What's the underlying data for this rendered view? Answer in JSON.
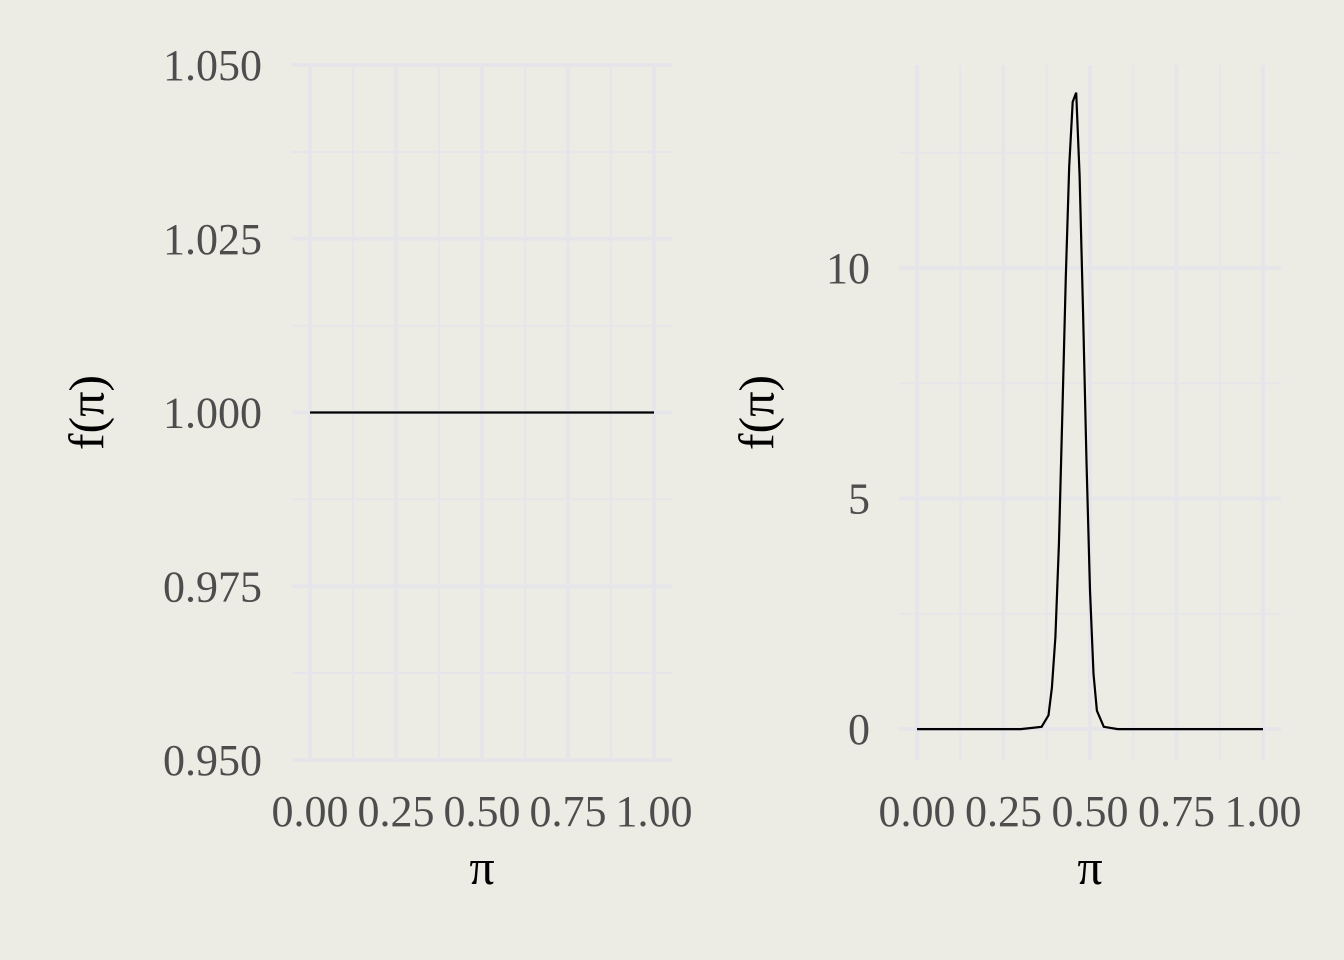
{
  "chart_data": [
    {
      "type": "line",
      "title": "",
      "xlabel": "π",
      "ylabel": "f(π)",
      "xlim": [
        0,
        1
      ],
      "ylim": [
        0.95,
        1.05
      ],
      "x_ticks": [
        0,
        0.25,
        0.5,
        0.75,
        1
      ],
      "x_tick_labels": [
        "0.00",
        "0.25",
        "0.50",
        "0.75",
        "1.00"
      ],
      "y_ticks": [
        0.95,
        0.975,
        1.0,
        1.025,
        1.05
      ],
      "y_tick_labels": [
        "0.950",
        "0.975",
        "1.000",
        "1.025",
        "1.050"
      ],
      "grid": true,
      "series": [
        {
          "x": [
            0,
            1
          ],
          "y": [
            1,
            1
          ],
          "color": "#000000"
        }
      ]
    },
    {
      "type": "line",
      "title": "",
      "xlabel": "π",
      "ylabel": "f(π)",
      "xlim": [
        0,
        1
      ],
      "ylim": [
        -0.67,
        14.4
      ],
      "x_ticks": [
        0,
        0.25,
        0.5,
        0.75,
        1
      ],
      "x_tick_labels": [
        "0.00",
        "0.25",
        "0.50",
        "0.75",
        "1.00"
      ],
      "y_ticks": [
        0,
        5,
        10
      ],
      "y_tick_labels": [
        "0",
        "5",
        "10"
      ],
      "grid": true,
      "series": [
        {
          "color": "#000000",
          "x": [
            0,
            0.3,
            0.36,
            0.38,
            0.39,
            0.4,
            0.41,
            0.42,
            0.43,
            0.44,
            0.45,
            0.46,
            0.47,
            0.48,
            0.49,
            0.5,
            0.51,
            0.52,
            0.54,
            0.58,
            1.0
          ],
          "y": [
            0,
            0,
            0.05,
            0.3,
            0.9,
            2.0,
            4.0,
            6.8,
            9.8,
            12.2,
            13.6,
            13.8,
            12.0,
            9.0,
            5.8,
            3.0,
            1.2,
            0.4,
            0.05,
            0,
            0
          ]
        }
      ]
    }
  ]
}
